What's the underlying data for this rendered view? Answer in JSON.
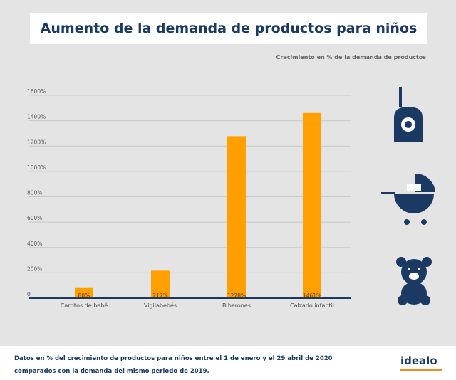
{
  "title": "Aumento de la demanda de productos para niños",
  "subtitle": "Crecimiento en % de la demanda de productos",
  "footer_note": "Datos en % del crecimiento de productos para niños entre el 1 de enero  y el 29 abril de 2020 comparados con la demanda del mismo periodo de 2019.",
  "logo": "idealo",
  "colors": {
    "bar": "#ffa000",
    "baseline": "#1b3a63",
    "icons": "#1b3a63",
    "logo_underline": "#f08a24"
  },
  "icons": [
    "baby-monitor-icon",
    "baby-stroller-icon",
    "teddy-bear-icon"
  ],
  "chart_data": {
    "type": "bar",
    "categories": [
      "Carritos de bebé",
      "Vigilabebés",
      "Biberones",
      "Calzado infantil"
    ],
    "values": [
      80,
      217,
      1278,
      1461
    ],
    "data_labels": [
      "80%",
      "217%",
      "1278%",
      "1461%"
    ],
    "ylim": [
      0,
      1600
    ],
    "yticks": [
      0,
      200,
      400,
      600,
      800,
      1000,
      1200,
      1400,
      1600
    ],
    "ytick_labels": [
      "0",
      "200%",
      "400%",
      "600%",
      "800%",
      "1000%",
      "1200%",
      "1400%",
      "1600%"
    ],
    "grid": true
  }
}
